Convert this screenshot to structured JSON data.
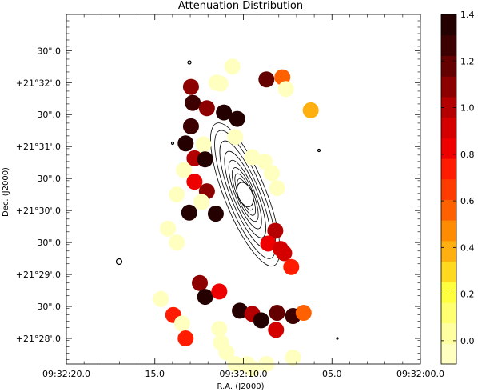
{
  "chart_data": {
    "type": "scatter",
    "title": "Attenuation Distribution",
    "xlabel": "R.A. (J2000)",
    "ylabel": "Dec. (J2000)",
    "x_ticks": [
      "09:32:20.0",
      "15.0",
      "09:32:10.0",
      "05.0",
      "09:32:00.0"
    ],
    "y_ticks": [
      "+21°28'.0",
      "30\".0",
      "+21°29'.0",
      "30\".0",
      "+21°30'.0",
      "30\".0",
      "+21°31'.0",
      "30\".0",
      "+21°32'.0",
      "30\".0"
    ],
    "xlim_s": [
      20.0,
      0.0
    ],
    "ylim_arcsec": [
      -24,
      304
    ],
    "colorbar": {
      "ticks": [
        "1.4",
        "1.2",
        "1.0",
        "0.8",
        "0.6",
        "0.4",
        "0.2",
        "0.0"
      ],
      "range": [
        -0.1,
        1.4
      ],
      "colors": [
        "#ffffc0",
        "#ffffa0",
        "#ffff70",
        "#ffff40",
        "#ffd820",
        "#ffb010",
        "#ff8c00",
        "#ff6000",
        "#ff3c00",
        "#ff1c00",
        "#ee0000",
        "#d40000",
        "#b40000",
        "#8c0000",
        "#640000",
        "#3c0000",
        "#240000"
      ]
    },
    "points": [
      {
        "ra_s": 10.62,
        "dec_as": 255,
        "v": -0.05
      },
      {
        "ra_s": 11.3,
        "dec_as": 239,
        "v": -0.05
      },
      {
        "ra_s": 11.52,
        "dec_as": 240,
        "v": -0.05
      },
      {
        "ra_s": 8.7,
        "dec_as": 243,
        "v": 1.2
      },
      {
        "ra_s": 7.8,
        "dec_as": 245,
        "v": 0.55
      },
      {
        "ra_s": 7.6,
        "dec_as": 234,
        "v": -0.05
      },
      {
        "ra_s": 12.96,
        "dec_as": 236,
        "v": 1.1
      },
      {
        "ra_s": 12.86,
        "dec_as": 221,
        "v": 1.25
      },
      {
        "ra_s": 12.06,
        "dec_as": 216,
        "v": 1.1
      },
      {
        "ra_s": 11.1,
        "dec_as": 212,
        "v": 1.4
      },
      {
        "ra_s": 10.35,
        "dec_as": 206,
        "v": 1.4
      },
      {
        "ra_s": 6.2,
        "dec_as": 214,
        "v": 0.4
      },
      {
        "ra_s": 12.96,
        "dec_as": 199,
        "v": 1.3
      },
      {
        "ra_s": 13.26,
        "dec_as": 183,
        "v": 1.4
      },
      {
        "ra_s": 12.26,
        "dec_as": 182,
        "v": -0.05
      },
      {
        "ra_s": 10.46,
        "dec_as": 189,
        "v": -0.05
      },
      {
        "ra_s": 12.76,
        "dec_as": 169,
        "v": 1.0
      },
      {
        "ra_s": 12.16,
        "dec_as": 168,
        "v": 1.4
      },
      {
        "ra_s": 13.36,
        "dec_as": 158,
        "v": -0.05
      },
      {
        "ra_s": 12.76,
        "dec_as": 147,
        "v": 0.85
      },
      {
        "ra_s": 12.06,
        "dec_as": 138,
        "v": 1.1
      },
      {
        "ra_s": 13.76,
        "dec_as": 135,
        "v": -0.05
      },
      {
        "ra_s": 12.36,
        "dec_as": 128,
        "v": -0.05
      },
      {
        "ra_s": 13.06,
        "dec_as": 118,
        "v": 1.4
      },
      {
        "ra_s": 11.56,
        "dec_as": 117,
        "v": 1.4
      },
      {
        "ra_s": 9.5,
        "dec_as": 170,
        "v": -0.05
      },
      {
        "ra_s": 8.8,
        "dec_as": 166,
        "v": -0.05
      },
      {
        "ra_s": 8.4,
        "dec_as": 155,
        "v": -0.05
      },
      {
        "ra_s": 8.1,
        "dec_as": 141,
        "v": -0.05
      },
      {
        "ra_s": 14.26,
        "dec_as": 103,
        "v": -0.05
      },
      {
        "ra_s": 13.76,
        "dec_as": 90,
        "v": -0.05
      },
      {
        "ra_s": 8.2,
        "dec_as": 101,
        "v": 1.0
      },
      {
        "ra_s": 8.6,
        "dec_as": 89,
        "v": 0.8
      },
      {
        "ra_s": 7.9,
        "dec_as": 84,
        "v": 0.95
      },
      {
        "ra_s": 7.7,
        "dec_as": 80,
        "v": 0.9
      },
      {
        "ra_s": 7.3,
        "dec_as": 67,
        "v": 0.75
      },
      {
        "ra_s": 12.46,
        "dec_as": 52,
        "v": 1.1
      },
      {
        "ra_s": 12.16,
        "dec_as": 39,
        "v": 1.4
      },
      {
        "ra_s": 11.36,
        "dec_as": 44,
        "v": 0.8
      },
      {
        "ra_s": 14.66,
        "dec_as": 37,
        "v": -0.05
      },
      {
        "ra_s": 13.96,
        "dec_as": 22,
        "v": 0.7
      },
      {
        "ra_s": 13.46,
        "dec_as": 14,
        "v": -0.05
      },
      {
        "ra_s": 10.2,
        "dec_as": 26,
        "v": 1.4
      },
      {
        "ra_s": 9.5,
        "dec_as": 23,
        "v": 1.0
      },
      {
        "ra_s": 8.1,
        "dec_as": 24,
        "v": 1.2
      },
      {
        "ra_s": 9.0,
        "dec_as": 17,
        "v": 1.4
      },
      {
        "ra_s": 7.2,
        "dec_as": 21,
        "v": 1.3
      },
      {
        "ra_s": 6.6,
        "dec_as": 24,
        "v": 0.6
      },
      {
        "ra_s": 8.16,
        "dec_as": 8,
        "v": 0.9
      },
      {
        "ra_s": 11.36,
        "dec_as": 9,
        "v": -0.05
      },
      {
        "ra_s": 13.26,
        "dec_as": 0,
        "v": 0.75
      },
      {
        "ra_s": 11.26,
        "dec_as": -4,
        "v": -0.05
      },
      {
        "ra_s": 10.96,
        "dec_as": -13,
        "v": -0.05
      },
      {
        "ra_s": 10.46,
        "dec_as": -24,
        "v": -0.05
      },
      {
        "ra_s": 9.8,
        "dec_as": -24,
        "v": -0.05
      },
      {
        "ra_s": 9.5,
        "dec_as": -28,
        "v": -0.05
      },
      {
        "ra_s": 8.7,
        "dec_as": -24,
        "v": -0.05
      },
      {
        "ra_s": 7.2,
        "dec_as": -18,
        "v": -0.05
      }
    ]
  }
}
